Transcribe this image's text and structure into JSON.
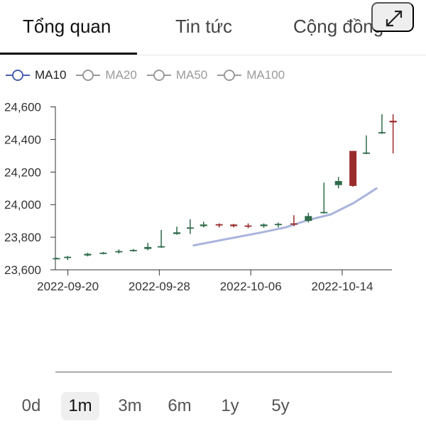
{
  "tabs": [
    {
      "label": "Tổng quan",
      "active": true
    },
    {
      "label": "Tin tức",
      "active": false
    },
    {
      "label": "Cộng đồng",
      "active": false
    }
  ],
  "legend": [
    {
      "label": "MA10",
      "color": "#4a5fb0",
      "active": true
    },
    {
      "label": "MA20",
      "color": "#9a9a9a",
      "active": false
    },
    {
      "label": "MA50",
      "color": "#9a9a9a",
      "active": false
    },
    {
      "label": "MA100",
      "color": "#9a9a9a",
      "active": false
    }
  ],
  "ranges": [
    {
      "label": "0d",
      "active": false
    },
    {
      "label": "1m",
      "active": true
    },
    {
      "label": "3m",
      "active": false
    },
    {
      "label": "6m",
      "active": false
    },
    {
      "label": "1y",
      "active": false
    },
    {
      "label": "5y",
      "active": false
    }
  ],
  "expand_icon": "expand-arrows-icon",
  "colors": {
    "up": "#2e6b4b",
    "down": "#9a2b2b",
    "ma10": "#aab5dc"
  },
  "chart_data": {
    "type": "candlestick",
    "ylim": [
      23600,
      24620
    ],
    "yticks": [
      "24,600",
      "24,400",
      "24,200",
      "24,000",
      "23,800",
      "23,600"
    ],
    "ytick_values": [
      24600,
      24400,
      24200,
      24000,
      23800,
      23600
    ],
    "xticks": [
      "2022-09-20",
      "2022-09-28",
      "2022-10-06",
      "2022-10-14"
    ],
    "xtick_index": [
      1,
      9,
      17,
      25
    ],
    "candles": [
      {
        "open": 23670,
        "high": 23675,
        "low": 23665,
        "close": 23672
      },
      {
        "open": 23675,
        "high": 23685,
        "low": 23660,
        "close": 23680
      },
      {
        "open": 23688,
        "high": 23705,
        "low": 23682,
        "close": 23698
      },
      {
        "open": 23702,
        "high": 23710,
        "low": 23695,
        "close": 23705
      },
      {
        "open": 23708,
        "high": 23725,
        "low": 23700,
        "close": 23715
      },
      {
        "open": 23718,
        "high": 23728,
        "low": 23712,
        "close": 23722
      },
      {
        "open": 23728,
        "high": 23765,
        "low": 23720,
        "close": 23740
      },
      {
        "open": 23740,
        "high": 23845,
        "low": 23735,
        "close": 23745
      },
      {
        "open": 23820,
        "high": 23865,
        "low": 23815,
        "close": 23830
      },
      {
        "open": 23855,
        "high": 23910,
        "low": 23820,
        "close": 23860
      },
      {
        "open": 23868,
        "high": 23895,
        "low": 23860,
        "close": 23878
      },
      {
        "open": 23880,
        "high": 23885,
        "low": 23860,
        "close": 23872
      },
      {
        "open": 23878,
        "high": 23882,
        "low": 23860,
        "close": 23868
      },
      {
        "open": 23872,
        "high": 23885,
        "low": 23855,
        "close": 23865
      },
      {
        "open": 23868,
        "high": 23885,
        "low": 23858,
        "close": 23878
      },
      {
        "open": 23875,
        "high": 23890,
        "low": 23860,
        "close": 23882
      },
      {
        "open": 23885,
        "high": 23935,
        "low": 23868,
        "close": 23880
      },
      {
        "open": 23900,
        "high": 23950,
        "low": 23890,
        "close": 23930
      },
      {
        "open": 23950,
        "high": 24135,
        "low": 23945,
        "close": 23955
      },
      {
        "open": 24120,
        "high": 24170,
        "low": 24100,
        "close": 24145
      },
      {
        "open": 24330,
        "high": 24330,
        "low": 24110,
        "close": 24115
      },
      {
        "open": 24315,
        "high": 24425,
        "low": 24310,
        "close": 24320
      },
      {
        "open": 24440,
        "high": 24555,
        "low": 24435,
        "close": 24445
      },
      {
        "open": 24515,
        "high": 24555,
        "low": 24315,
        "close": 24505
      }
    ],
    "ma10": [
      {
        "i": 12,
        "v": 23750
      },
      {
        "i": 15,
        "v": 23790
      },
      {
        "i": 18,
        "v": 23830
      },
      {
        "i": 20,
        "v": 23860
      },
      {
        "i": 22,
        "v": 23905
      },
      {
        "i": 24,
        "v": 23940
      },
      {
        "i": 26,
        "v": 24010
      },
      {
        "i": 28,
        "v": 24100
      }
    ]
  }
}
